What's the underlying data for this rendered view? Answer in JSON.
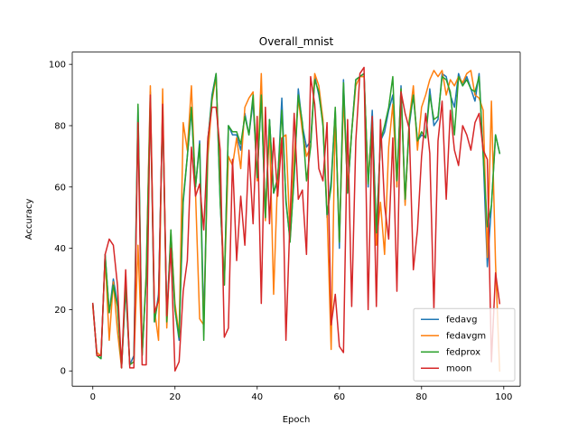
{
  "chart_data": {
    "type": "line",
    "title": "Overall_mnist",
    "xlabel": "Epoch",
    "ylabel": "Accuracy",
    "xlim": [
      -5,
      104
    ],
    "ylim": [
      -5,
      104
    ],
    "xticks": [
      0,
      20,
      40,
      60,
      80,
      100
    ],
    "yticks": [
      0,
      20,
      40,
      60,
      80,
      100
    ],
    "legend_position": "lower-right",
    "grid": false,
    "x": [
      0,
      1,
      2,
      3,
      4,
      5,
      6,
      7,
      8,
      9,
      10,
      11,
      12,
      13,
      14,
      15,
      16,
      17,
      18,
      19,
      20,
      21,
      22,
      23,
      24,
      25,
      26,
      27,
      28,
      29,
      30,
      31,
      32,
      33,
      34,
      35,
      36,
      37,
      38,
      39,
      40,
      41,
      42,
      43,
      44,
      45,
      46,
      47,
      48,
      49,
      50,
      51,
      52,
      53,
      54,
      55,
      56,
      57,
      58,
      59,
      60,
      61,
      62,
      63,
      64,
      65,
      66,
      67,
      68,
      69,
      70,
      71,
      72,
      73,
      74,
      75,
      76,
      77,
      78,
      79,
      80,
      81,
      82,
      83,
      84,
      85,
      86,
      87,
      88,
      89,
      90,
      91,
      92,
      93,
      94,
      95,
      96,
      97,
      98,
      99
    ],
    "series": [
      {
        "name": "fedavg",
        "color": "#1f77b4",
        "values": [
          22,
          5,
          4,
          38,
          19,
          30,
          22,
          1,
          27,
          2,
          5,
          86,
          5,
          30,
          91,
          16,
          25,
          85,
          18,
          44,
          20,
          10,
          55,
          70,
          85,
          60,
          75,
          15,
          75,
          90,
          97,
          55,
          28,
          80,
          77,
          77,
          72,
          84,
          77,
          88,
          63,
          90,
          50,
          82,
          58,
          62,
          89,
          55,
          43,
          63,
          92,
          80,
          73,
          75,
          96,
          90,
          81,
          50,
          62,
          85,
          40,
          95,
          58,
          78,
          95,
          96,
          97,
          60,
          85,
          45,
          75,
          78,
          85,
          90,
          60,
          93,
          55,
          80,
          90,
          75,
          77,
          76,
          92,
          80,
          82,
          97,
          96,
          90,
          86,
          97,
          93,
          96,
          92,
          88,
          97,
          70,
          34,
          54,
          77,
          71
        ]
      },
      {
        "name": "fedavgm",
        "color": "#ff7f0e",
        "values": [
          21,
          6,
          5,
          37,
          10,
          29,
          13,
          1,
          29,
          2,
          3,
          41,
          5,
          32,
          93,
          20,
          10,
          92,
          14,
          45,
          22,
          12,
          81,
          72,
          93,
          58,
          17,
          15,
          70,
          88,
          96,
          60,
          28,
          70,
          67,
          76,
          66,
          86,
          89,
          91,
          62,
          97,
          49,
          80,
          25,
          64,
          76,
          77,
          44,
          70,
          89,
          78,
          70,
          73,
          97,
          93,
          82,
          52,
          7,
          84,
          42,
          89,
          60,
          78,
          93,
          96,
          96,
          62,
          82,
          41,
          55,
          38,
          73,
          87,
          60,
          92,
          54,
          82,
          93,
          72,
          86,
          90,
          95,
          98,
          96,
          98,
          90,
          95,
          93,
          96,
          94,
          97,
          98,
          90,
          89,
          85,
          37,
          88,
          35,
          0
        ]
      },
      {
        "name": "fedprox",
        "color": "#2ca02c",
        "values": [
          22,
          5,
          4,
          38,
          19,
          28,
          21,
          1,
          28,
          2,
          3,
          87,
          5,
          31,
          89,
          16,
          24,
          86,
          16,
          46,
          20,
          11,
          56,
          70,
          86,
          60,
          74,
          10,
          75,
          89,
          97,
          55,
          28,
          80,
          78,
          78,
          74,
          83,
          77,
          90,
          63,
          90,
          50,
          82,
          58,
          63,
          85,
          56,
          42,
          64,
          90,
          81,
          62,
          73,
          95,
          91,
          80,
          51,
          60,
          86,
          42,
          94,
          58,
          78,
          95,
          96,
          97,
          61,
          82,
          45,
          75,
          80,
          86,
          96,
          62,
          92,
          56,
          81,
          90,
          75,
          78,
          76,
          90,
          82,
          83,
          96,
          95,
          91,
          77,
          96,
          93,
          95,
          92,
          91,
          96,
          70,
          47,
          54,
          77,
          71
        ]
      },
      {
        "name": "moon",
        "color": "#d62728",
        "values": [
          22,
          5,
          5,
          38,
          43,
          41,
          28,
          1,
          33,
          1,
          1,
          81,
          2,
          2,
          90,
          19,
          23,
          87,
          18,
          40,
          0,
          3,
          26,
          36,
          73,
          57,
          61,
          46,
          76,
          86,
          86,
          72,
          11,
          14,
          69,
          36,
          57,
          41,
          72,
          48,
          83,
          22,
          86,
          48,
          76,
          57,
          76,
          10,
          50,
          84,
          56,
          59,
          38,
          96,
          87,
          66,
          62,
          81,
          15,
          25,
          8,
          6,
          82,
          21,
          75,
          97,
          99,
          20,
          83,
          21,
          82,
          54,
          43,
          76,
          26,
          91,
          84,
          79,
          33,
          46,
          70,
          84,
          71,
          20,
          75,
          88,
          56,
          85,
          72,
          67,
          80,
          77,
          72,
          81,
          84,
          72,
          69,
          3,
          32,
          22
        ]
      }
    ]
  }
}
